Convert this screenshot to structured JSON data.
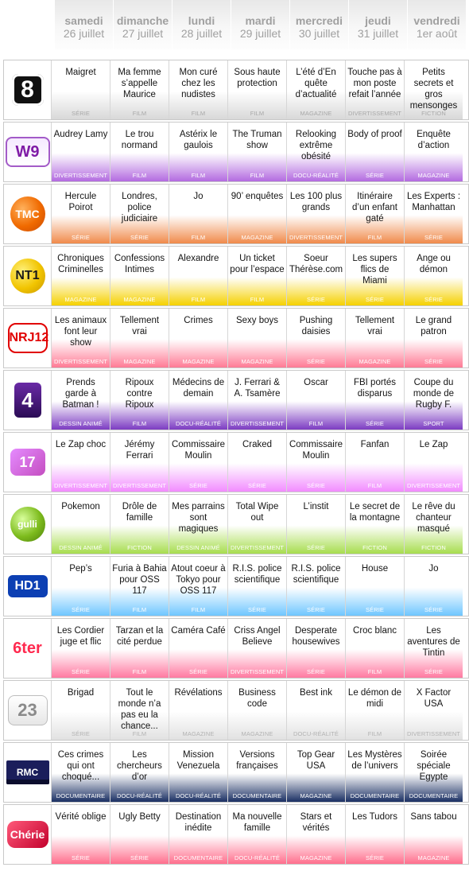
{
  "days": [
    {
      "name": "samedi",
      "date": "26 juillet"
    },
    {
      "name": "dimanche",
      "date": "27 juillet"
    },
    {
      "name": "lundi",
      "date": "28 juillet"
    },
    {
      "name": "mardi",
      "date": "29 juillet"
    },
    {
      "name": "mercredi",
      "date": "30 juillet"
    },
    {
      "name": "jeudi",
      "date": "31 juillet"
    },
    {
      "name": "vendredi",
      "date": "1er août"
    }
  ],
  "rows": [
    {
      "channel_icon": "d8-logo",
      "channel_logo_text": "8",
      "accent": "#d8d8d8",
      "genre_color": "#a8a8a8",
      "cells": [
        {
          "title": "Maigret",
          "genre": "SÉRIE"
        },
        {
          "title": "Ma femme s’appelle Maurice",
          "genre": "FILM"
        },
        {
          "title": "Mon curé chez les nudistes",
          "genre": "FILM"
        },
        {
          "title": "Sous haute protection",
          "genre": "FILM"
        },
        {
          "title": "L’été d’En quête d’actualité",
          "genre": "MAGAZINE"
        },
        {
          "title": "Touche pas à mon poste refait l’année",
          "genre": "DIVERTISSEMENT"
        },
        {
          "title": "Petits secrets et gros mensonges",
          "genre": "FICTION"
        }
      ]
    },
    {
      "channel_icon": "w9-logo",
      "channel_logo_text": "W9",
      "accent": "#b36be0",
      "genre_color": "#ffffff",
      "cells": [
        {
          "title": "Audrey Lamy",
          "genre": "DIVERTISSEMENT"
        },
        {
          "title": "Le trou normand",
          "genre": "FILM"
        },
        {
          "title": "Astérix le gaulois",
          "genre": "FILM"
        },
        {
          "title": "The Truman show",
          "genre": "FILM"
        },
        {
          "title": "Relooking extrême obésité",
          "genre": "DOCU-RÉALITÉ"
        },
        {
          "title": "Body of proof",
          "genre": "SÉRIE"
        },
        {
          "title": "Enquête d’action",
          "genre": "MAGAZINE"
        }
      ]
    },
    {
      "channel_icon": "tmc-logo",
      "channel_logo_text": "TMC",
      "accent": "#f08a4b",
      "genre_color": "#ffffff",
      "cells": [
        {
          "title": "Hercule Poirot",
          "genre": "SÉRIE"
        },
        {
          "title": "Londres, police judiciaire",
          "genre": "SÉRIE"
        },
        {
          "title": "Jo",
          "genre": "FILM"
        },
        {
          "title": "90’ enquêtes",
          "genre": "MAGAZINE"
        },
        {
          "title": "Les 100 plus grands",
          "genre": "DIVERTISSEMENT"
        },
        {
          "title": "Itinéraire d’un enfant gaté",
          "genre": "FILM"
        },
        {
          "title": "Les Experts : Manhattan",
          "genre": "SÉRIE"
        }
      ]
    },
    {
      "channel_icon": "nt1-logo",
      "channel_logo_text": "NT1",
      "accent": "#f5d100",
      "genre_color": "#ffffff",
      "cells": [
        {
          "title": "Chroniques Criminelles",
          "genre": "MAGAZINE"
        },
        {
          "title": "Confessions Intimes",
          "genre": "MAGAZINE"
        },
        {
          "title": "Alexandre",
          "genre": "FILM"
        },
        {
          "title": "Un ticket pour l’espace",
          "genre": "FILM"
        },
        {
          "title": "Soeur Thérèse.com",
          "genre": "SÉRIE"
        },
        {
          "title": "Les supers flics de Miami",
          "genre": "SÉRIE"
        },
        {
          "title": "Ange ou démon",
          "genre": "SÉRIE"
        }
      ]
    },
    {
      "channel_icon": "nrj12-logo",
      "channel_logo_text": "NRJ12",
      "accent": "#ff7b95",
      "genre_color": "#ffffff",
      "cells": [
        {
          "title": "Les animaux font leur show",
          "genre": "DIVERTISSEMENT"
        },
        {
          "title": "Tellement vrai",
          "genre": "MAGAZINE"
        },
        {
          "title": "Crimes",
          "genre": "MAGAZINE"
        },
        {
          "title": "Sexy boys",
          "genre": "MAGAZINE"
        },
        {
          "title": "Pushing daisies",
          "genre": "SÉRIE"
        },
        {
          "title": "Tellement vrai",
          "genre": "MAGAZINE"
        },
        {
          "title": "Le grand patron",
          "genre": "SÉRIE"
        }
      ]
    },
    {
      "channel_icon": "france4-logo",
      "channel_logo_text": "4",
      "accent": "#7c3cc2",
      "genre_color": "#ffffff",
      "cells": [
        {
          "title": "Prends garde à Batman !",
          "genre": "DESSIN ANIMÉ"
        },
        {
          "title": "Ripoux contre Ripoux",
          "genre": "FILM"
        },
        {
          "title": "Médecins de demain",
          "genre": "DOCU-RÉALITÉ"
        },
        {
          "title": "J. Ferrari & A. Tsamère",
          "genre": "DIVERTISSEMENT"
        },
        {
          "title": "Oscar",
          "genre": "FILM"
        },
        {
          "title": "FBI portés disparus",
          "genre": "SÉRIE"
        },
        {
          "title": "Coupe du monde de Rugby F.",
          "genre": "SPORT"
        }
      ]
    },
    {
      "channel_icon": "17-logo",
      "channel_logo_text": "17",
      "accent": "#f28cff",
      "genre_color": "#ffffff",
      "cells": [
        {
          "title": "Le Zap choc",
          "genre": "DIVERTISSEMENT"
        },
        {
          "title": "Jérémy Ferrari",
          "genre": "DIVERTISSEMENT"
        },
        {
          "title": "Commissaire Moulin",
          "genre": "SÉRIE"
        },
        {
          "title": "Craked",
          "genre": "SÉRIE"
        },
        {
          "title": "Commissaire Moulin",
          "genre": "SÉRIE"
        },
        {
          "title": "Fanfan",
          "genre": "FILM"
        },
        {
          "title": "Le Zap",
          "genre": "DIVERTISSEMENT"
        }
      ]
    },
    {
      "channel_icon": "gulli-logo",
      "channel_logo_text": "gulli",
      "accent": "#a7dd4f",
      "genre_color": "#ffffff",
      "cells": [
        {
          "title": "Pokemon",
          "genre": "DESSIN ANIMÉ"
        },
        {
          "title": "Drôle de famille",
          "genre": "FICTION"
        },
        {
          "title": "Mes parrains sont magiques",
          "genre": "DESSIN ANIMÉ"
        },
        {
          "title": "Total Wipe out",
          "genre": "DIVERTISSEMENT"
        },
        {
          "title": "L’instit",
          "genre": "SÉRIE"
        },
        {
          "title": "Le secret de la montagne",
          "genre": "FICTION"
        },
        {
          "title": "Le rêve du chanteur masqué",
          "genre": "FICTION"
        }
      ]
    },
    {
      "channel_icon": "hd1-logo",
      "channel_logo_text": "HD1",
      "accent": "#6fc6ff",
      "genre_color": "#ffffff",
      "cells": [
        {
          "title": "Pep’s",
          "genre": "SÉRIE"
        },
        {
          "title": "Furia à Bahia pour OSS 117",
          "genre": "FILM"
        },
        {
          "title": "Atout coeur à Tokyo pour OSS 117",
          "genre": "FILM"
        },
        {
          "title": "R.I.S. police scientifique",
          "genre": "SÉRIE"
        },
        {
          "title": "R.I.S. police scientifique",
          "genre": "SÉRIE"
        },
        {
          "title": "House",
          "genre": "SÉRIE"
        },
        {
          "title": "Jo",
          "genre": "SÉRIE"
        }
      ]
    },
    {
      "channel_icon": "6ter-logo",
      "channel_logo_text": "6ter",
      "accent": "#ff7aa1",
      "genre_color": "#ffffff",
      "cells": [
        {
          "title": "Les Cordier juge et flic",
          "genre": "SÉRIE"
        },
        {
          "title": "Tarzan et la cité perdue",
          "genre": "FILM"
        },
        {
          "title": "Caméra Café",
          "genre": "SÉRIE"
        },
        {
          "title": "Criss Angel Believe",
          "genre": "DIVERTISSEMENT"
        },
        {
          "title": "Desperate housewives",
          "genre": "SÉRIE"
        },
        {
          "title": "Croc blanc",
          "genre": "FILM"
        },
        {
          "title": "Les aventures de Tintin",
          "genre": "SÉRIE"
        }
      ]
    },
    {
      "channel_icon": "23-logo",
      "channel_logo_text": "23",
      "accent": "#e1e1e1",
      "genre_color": "#b3b3b3",
      "cells": [
        {
          "title": "Brigad",
          "genre": "SÉRIE"
        },
        {
          "title": "Tout le monde n’a pas eu la chance...",
          "genre": "FILM"
        },
        {
          "title": "Révélations",
          "genre": "MAGAZINE"
        },
        {
          "title": "Business code",
          "genre": "MAGAZINE"
        },
        {
          "title": "Best ink",
          "genre": "DOCU-RÉALITÉ"
        },
        {
          "title": "Le démon de midi",
          "genre": "FILM"
        },
        {
          "title": "X Factor USA",
          "genre": "DIVERTISSEMENT"
        }
      ]
    },
    {
      "channel_icon": "rmc-decouverte-logo",
      "channel_logo_text": "RMC",
      "accent": "#1a2f63",
      "genre_color": "#ffffff",
      "cells": [
        {
          "title": "Ces crimes qui ont choqué...",
          "genre": "DOCUMENTAIRE"
        },
        {
          "title": "Les chercheurs d’or",
          "genre": "DOCU-RÉALITÉ"
        },
        {
          "title": "Mission Venezuela",
          "genre": "DOCU-RÉALITÉ"
        },
        {
          "title": "Versions françaises",
          "genre": "DOCUMENTAIRE"
        },
        {
          "title": "Top Gear USA",
          "genre": "MAGAZINE"
        },
        {
          "title": "Les Mystères de l’univers",
          "genre": "DOCUMENTAIRE"
        },
        {
          "title": "Soirée spéciale Egypte",
          "genre": "DOCUMENTAIRE"
        }
      ]
    },
    {
      "channel_icon": "cherie25-logo",
      "channel_logo_text": "Chérie",
      "accent": "#ff6f8d",
      "genre_color": "#ffffff",
      "cells": [
        {
          "title": "Vérité oblige",
          "genre": "SÉRIE"
        },
        {
          "title": "Ugly Betty",
          "genre": "SÉRIE"
        },
        {
          "title": "Destination inédite",
          "genre": "DOCUMENTAIRE"
        },
        {
          "title": "Ma nouvelle famille",
          "genre": "DOCU-RÉALITÉ"
        },
        {
          "title": "Stars et vérités",
          "genre": "MAGAZINE"
        },
        {
          "title": "Les Tudors",
          "genre": "SÉRIE"
        },
        {
          "title": "Sans tabou",
          "genre": "MAGAZINE"
        }
      ]
    }
  ]
}
